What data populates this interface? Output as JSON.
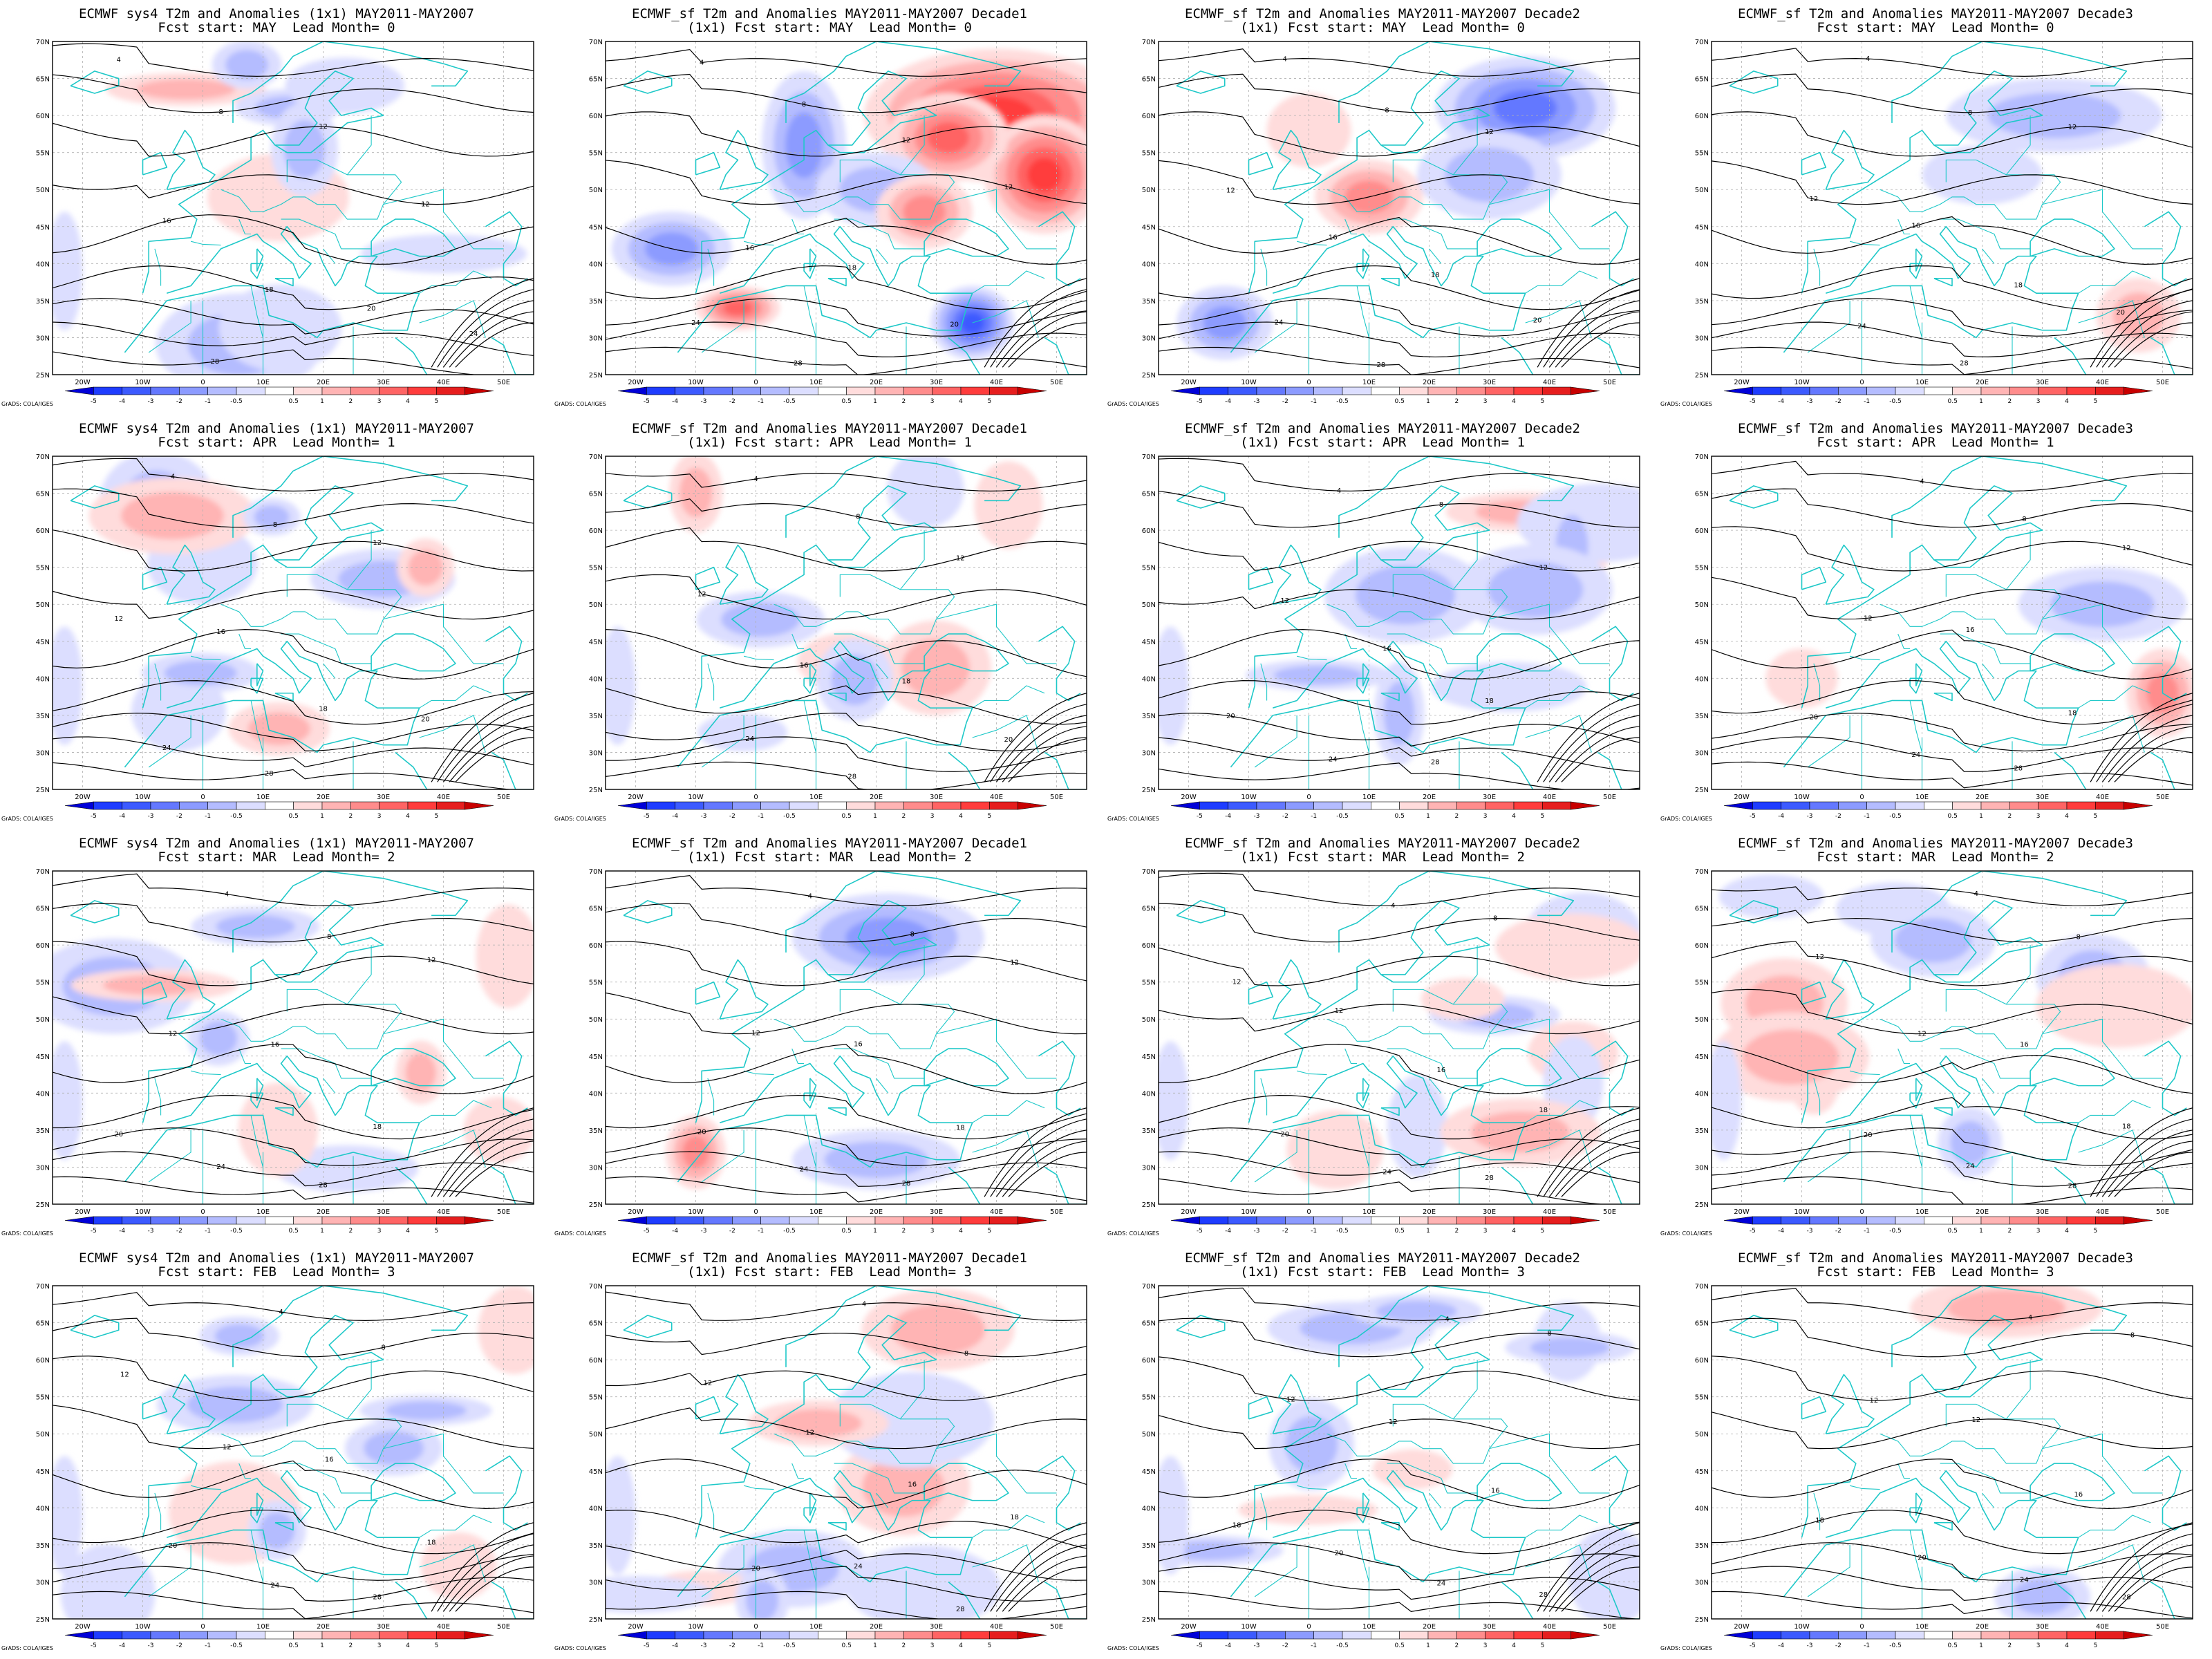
{
  "figure": {
    "rows": [
      {
        "start_label": "Fcst start: MAY  Lead Month= 0"
      },
      {
        "start_label": "Fcst start: APR  Lead Month= 1"
      },
      {
        "start_label": "Fcst start: MAR  Lead Month= 2"
      },
      {
        "start_label": "Fcst start: FEB  Lead Month= 3"
      }
    ],
    "columns": [
      {
        "title": "ECMWF sys4 T2m and Anomalies (1x1) MAY2011-MAY2007",
        "subtitle_prefix": ""
      },
      {
        "title": "ECMWF_sf T2m and Anomalies MAY2011-MAY2007 Decade1",
        "subtitle_prefix": "(1x1) "
      },
      {
        "title": "ECMWF_sf T2m and Anomalies MAY2011-MAY2007 Decade2",
        "subtitle_prefix": "(1x1) "
      },
      {
        "title": "ECMWF_sf T2m and Anomalies MAY2011-MAY2007 Decade3",
        "subtitle_prefix": ""
      }
    ],
    "lat_labels": [
      "70N",
      "65N",
      "60N",
      "55N",
      "50N",
      "45N",
      "40N",
      "35N",
      "30N",
      "25N"
    ],
    "lon_labels": [
      "20W",
      "10W",
      "0",
      "10E",
      "20E",
      "30E",
      "40E",
      "50E"
    ],
    "colorbar": {
      "labels": [
        "-5",
        "-4",
        "-3",
        "-2",
        "-1",
        "-0.5",
        "0.5",
        "1",
        "2",
        "3",
        "4",
        "5"
      ],
      "colors": [
        "#0000d8",
        "#1e3cff",
        "#3c5aff",
        "#6478ff",
        "#8c9bff",
        "#b4bcff",
        "#dcdeff",
        "#ffffff",
        "#ffdcdc",
        "#ffb4b4",
        "#ff8c8c",
        "#ff6464",
        "#ff3c3c",
        "#e61e1e",
        "#c80000"
      ]
    },
    "credit": "GrADS: COLA/IGES",
    "colors": {
      "coast": "#1ec8c8",
      "contour": "#000000",
      "dark_red": "#b40000"
    }
  }
}
